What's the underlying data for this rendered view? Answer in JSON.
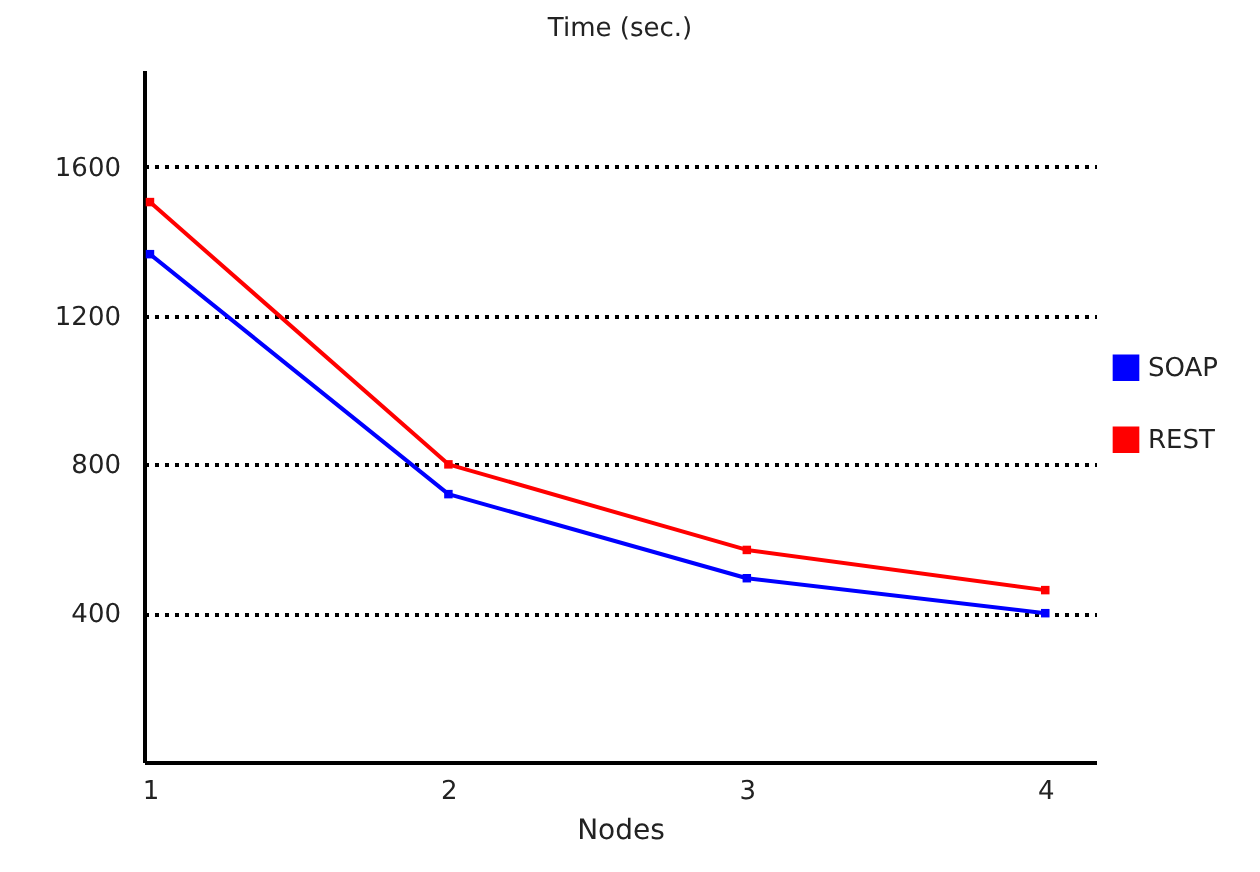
{
  "chart_data": {
    "type": "line",
    "title": "Time (sec.)",
    "xlabel": "Nodes",
    "x": [
      1,
      2,
      3,
      4
    ],
    "series": [
      {
        "name": "SOAP",
        "color": "#0000ff",
        "values": [
          1365,
          720,
          494,
          400
        ]
      },
      {
        "name": "REST",
        "color": "#ff0000",
        "values": [
          1505,
          800,
          570,
          462
        ]
      }
    ],
    "xlim": [
      0.98,
      4.17
    ],
    "xticks": [
      1,
      2,
      3,
      4
    ],
    "ylim": [
      0,
      1860
    ],
    "yticks": [
      400,
      800,
      1200,
      1600
    ],
    "grid": "y",
    "legend": "right",
    "marker": "square",
    "line_style": "solid"
  }
}
